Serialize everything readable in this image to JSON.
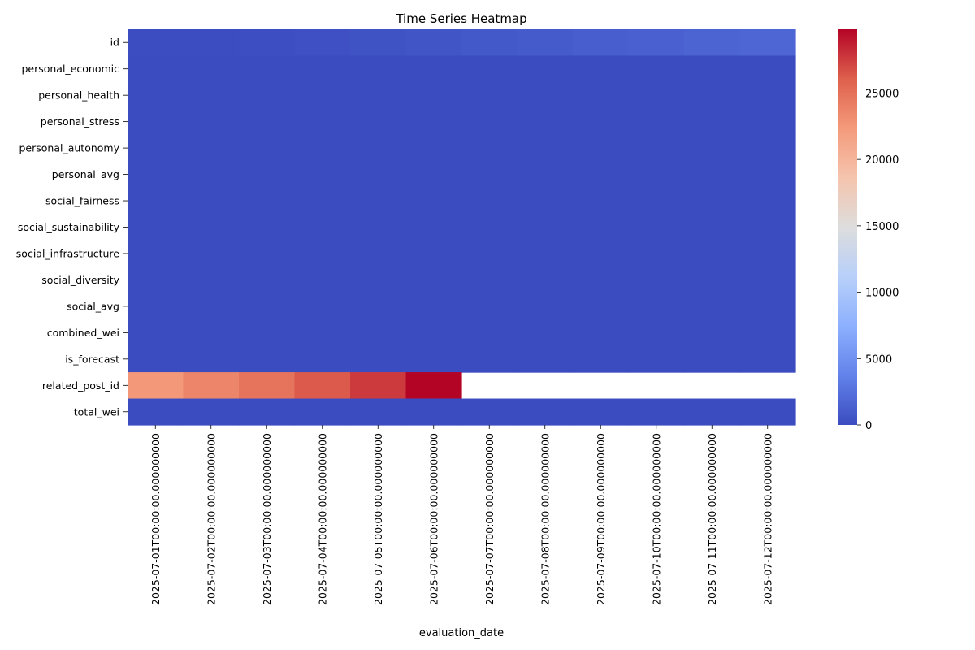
{
  "chart_data": {
    "type": "heatmap",
    "title": "Time Series Heatmap",
    "xlabel": "evaluation_date",
    "ylabel": "",
    "colormap": "coolwarm",
    "colorbar": {
      "min": 0,
      "max": 29800,
      "ticks": [
        0,
        5000,
        10000,
        15000,
        20000,
        25000
      ]
    },
    "x_categories": [
      "2025-07-01T00:00:00.000000000",
      "2025-07-02T00:00:00.000000000",
      "2025-07-03T00:00:00.000000000",
      "2025-07-04T00:00:00.000000000",
      "2025-07-05T00:00:00.000000000",
      "2025-07-06T00:00:00.000000000",
      "2025-07-07T00:00:00.000000000",
      "2025-07-08T00:00:00.000000000",
      "2025-07-09T00:00:00.000000000",
      "2025-07-10T00:00:00.000000000",
      "2025-07-11T00:00:00.000000000",
      "2025-07-12T00:00:00.000000000"
    ],
    "y_categories": [
      "id",
      "personal_economic",
      "personal_health",
      "personal_stress",
      "personal_autonomy",
      "personal_avg",
      "social_fairness",
      "social_sustainability",
      "social_infrastructure",
      "social_diversity",
      "social_avg",
      "combined_wei",
      "is_forecast",
      "related_post_id",
      "total_wei"
    ],
    "values": [
      [
        50,
        100,
        150,
        300,
        450,
        600,
        800,
        1000,
        1200,
        1400,
        1600,
        1800
      ],
      [
        0.6,
        0.6,
        0.6,
        0.6,
        0.6,
        0.6,
        0.6,
        0.6,
        0.6,
        0.6,
        0.6,
        0.6
      ],
      [
        0.6,
        0.6,
        0.6,
        0.6,
        0.6,
        0.6,
        0.6,
        0.6,
        0.6,
        0.6,
        0.6,
        0.6
      ],
      [
        0.5,
        0.5,
        0.5,
        0.5,
        0.5,
        0.5,
        0.5,
        0.5,
        0.5,
        0.5,
        0.5,
        0.5
      ],
      [
        0.6,
        0.6,
        0.6,
        0.6,
        0.6,
        0.6,
        0.6,
        0.6,
        0.6,
        0.6,
        0.6,
        0.6
      ],
      [
        0.6,
        0.6,
        0.6,
        0.6,
        0.6,
        0.6,
        0.6,
        0.6,
        0.6,
        0.6,
        0.6,
        0.6
      ],
      [
        0.6,
        0.6,
        0.6,
        0.6,
        0.6,
        0.6,
        0.6,
        0.6,
        0.6,
        0.6,
        0.6,
        0.6
      ],
      [
        0.6,
        0.6,
        0.6,
        0.6,
        0.6,
        0.6,
        0.6,
        0.6,
        0.6,
        0.6,
        0.6,
        0.6
      ],
      [
        0.6,
        0.6,
        0.6,
        0.6,
        0.6,
        0.6,
        0.6,
        0.6,
        0.6,
        0.6,
        0.6,
        0.6
      ],
      [
        0.6,
        0.6,
        0.6,
        0.6,
        0.6,
        0.6,
        0.6,
        0.6,
        0.6,
        0.6,
        0.6,
        0.6
      ],
      [
        0.6,
        0.6,
        0.6,
        0.6,
        0.6,
        0.6,
        0.6,
        0.6,
        0.6,
        0.6,
        0.6,
        0.6
      ],
      [
        0.6,
        0.6,
        0.6,
        0.6,
        0.6,
        0.6,
        0.6,
        0.6,
        0.6,
        0.6,
        0.6,
        0.6
      ],
      [
        0,
        0,
        0,
        0,
        0,
        0,
        1,
        1,
        1,
        1,
        1,
        1
      ],
      [
        22500,
        23700,
        24800,
        26300,
        27600,
        29800,
        null,
        null,
        null,
        null,
        null,
        null
      ],
      [
        1.2,
        1.2,
        1.2,
        1.2,
        1.2,
        1.2,
        1.2,
        1.2,
        1.2,
        1.2,
        1.2,
        1.2
      ]
    ]
  }
}
